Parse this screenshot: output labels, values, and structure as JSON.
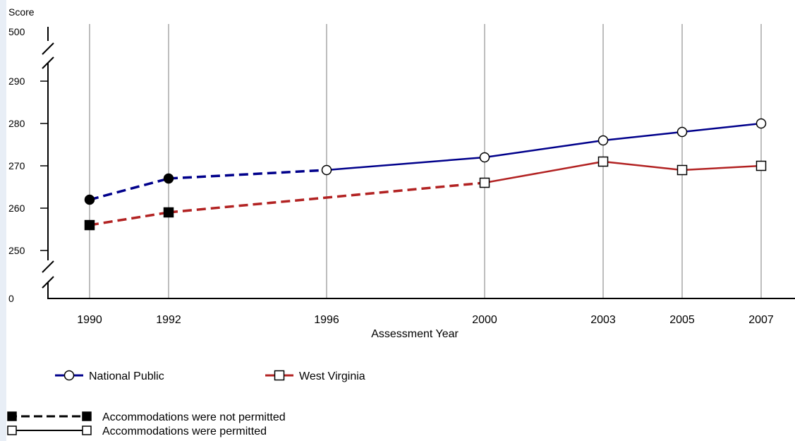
{
  "chart_data": {
    "type": "line",
    "ylabel": "Score",
    "xlabel": "Assessment Year",
    "x": [
      1990,
      1992,
      1996,
      2000,
      2003,
      2005,
      2007
    ],
    "y_ticks": [
      0,
      250,
      260,
      270,
      280,
      290,
      500
    ],
    "y_axis_breaks": [
      "0-250",
      "290-500"
    ],
    "ylim": [
      250,
      290
    ],
    "grid": "vertical",
    "series": [
      {
        "name": "National Public",
        "color": "#00008b",
        "marker": "circle",
        "points": [
          {
            "x": 1990,
            "y": 262,
            "accommodations": "not_permitted"
          },
          {
            "x": 1992,
            "y": 267,
            "accommodations": "not_permitted"
          },
          {
            "x": 1996,
            "y": 269,
            "accommodations": "permitted"
          },
          {
            "x": 2000,
            "y": 272,
            "accommodations": "permitted"
          },
          {
            "x": 2003,
            "y": 276,
            "accommodations": "permitted"
          },
          {
            "x": 2005,
            "y": 278,
            "accommodations": "permitted"
          },
          {
            "x": 2007,
            "y": 280,
            "accommodations": "permitted"
          }
        ]
      },
      {
        "name": "West Virginia",
        "color": "#b22222",
        "marker": "square",
        "points": [
          {
            "x": 1990,
            "y": 256,
            "accommodations": "not_permitted"
          },
          {
            "x": 1992,
            "y": 259,
            "accommodations": "not_permitted"
          },
          {
            "x": 2000,
            "y": 266,
            "accommodations": "permitted"
          },
          {
            "x": 2003,
            "y": 271,
            "accommodations": "permitted"
          },
          {
            "x": 2005,
            "y": 269,
            "accommodations": "permitted"
          },
          {
            "x": 2007,
            "y": 270,
            "accommodations": "permitted"
          }
        ]
      }
    ],
    "legend": {
      "placement": "bottom",
      "series_entries": [
        "National Public",
        "West Virginia"
      ],
      "style_entries": [
        {
          "label": "Accommodations were not permitted",
          "line": "dashed",
          "marker": "filled"
        },
        {
          "label": "Accommodations were permitted",
          "line": "solid",
          "marker": "open"
        }
      ]
    }
  }
}
